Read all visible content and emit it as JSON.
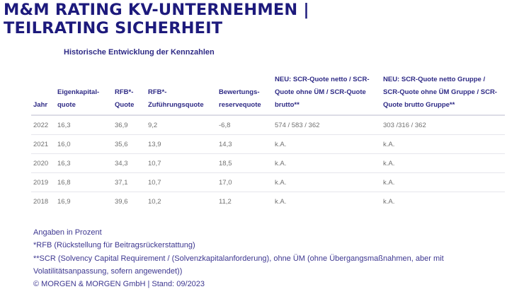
{
  "title": {
    "line1": "M&M RATING KV-UNTERNEHMEN |",
    "line2": "TEILRATING SICHERHEIT"
  },
  "subtitle": "Historische Entwicklung der Kennzahlen",
  "table": {
    "headers": [
      "Jahr",
      "Eigenkapital-quote",
      "RFB*-Quote",
      "RFB*-Zuführungsquote",
      "Bewertungs-reservequote",
      "NEU: SCR-Quote netto / SCR-Quote ohne ÜM / SCR-Quote brutto**",
      "NEU: SCR-Quote netto Gruppe / SCR-Quote ohne ÜM Gruppe / SCR-Quote brutto Gruppe**"
    ],
    "rows": [
      [
        "2022",
        "16,3",
        "36,9",
        "9,2",
        "-6,8",
        "574 / 583 / 362",
        "303 /316 / 362"
      ],
      [
        "2021",
        "16,0",
        "35,6",
        "13,9",
        "14,3",
        "k.A.",
        "k.A."
      ],
      [
        "2020",
        "16,3",
        "34,3",
        "10,7",
        "18,5",
        "k.A.",
        "k.A."
      ],
      [
        "2019",
        "16,8",
        "37,1",
        "10,7",
        "17,0",
        "k.A.",
        "k.A."
      ],
      [
        "2018",
        "16,9",
        "39,6",
        "10,2",
        "11,2",
        "k.A.",
        "k.A."
      ]
    ]
  },
  "footer": [
    "Angaben in Prozent",
    "*RFB (Rückstellung für Beitragsrückerstattung)",
    "**SCR (Solvency Capital Requirement / (Solvenzkapitalanforderung), ohne ÜM (ohne Übergangsmaßnahmen, aber mit",
    "Volatilitätsanpassung, sofern angewendet))",
    "© MORGEN & MORGEN GmbH | Stand: 09/2023"
  ]
}
